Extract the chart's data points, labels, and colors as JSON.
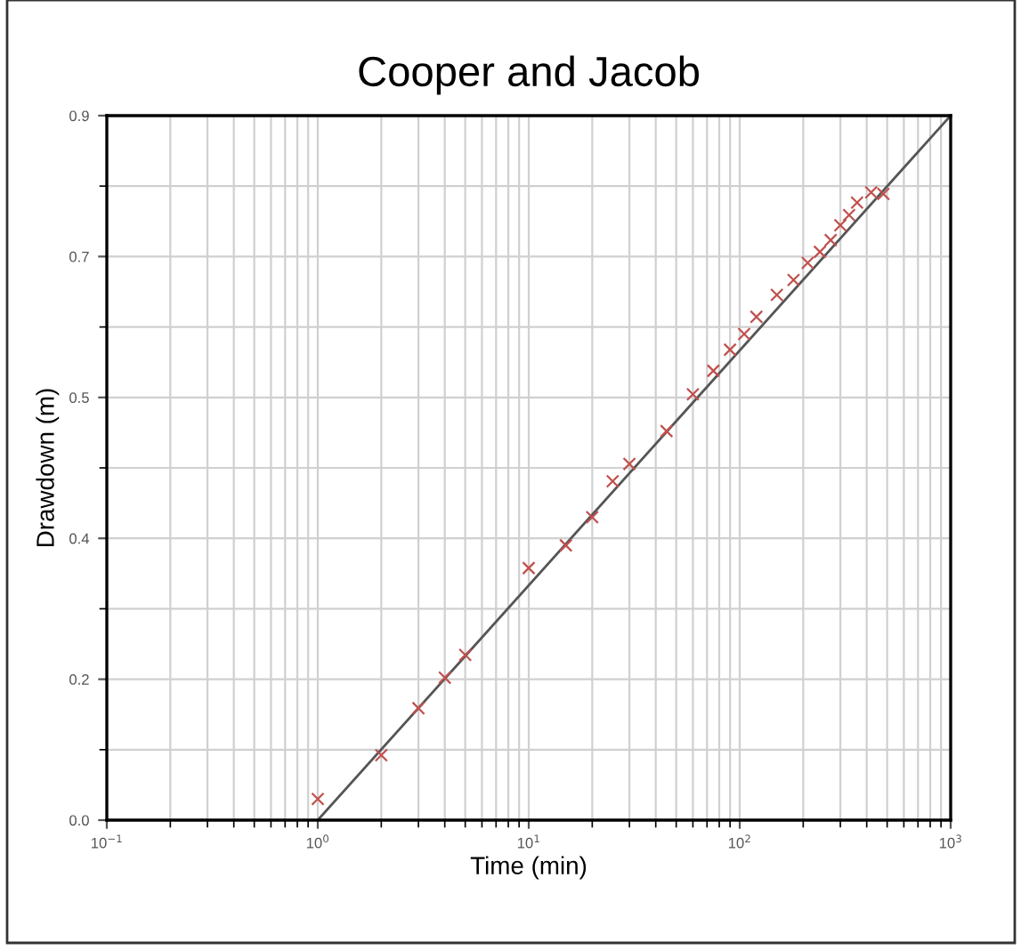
{
  "chart_data": {
    "type": "scatter",
    "title": "Cooper and Jacob",
    "xlabel": "Time (min)",
    "ylabel": "Drawdown (m)",
    "log": "x",
    "grid": true,
    "xlim": [
      0.1,
      1000
    ],
    "xticks": [
      {
        "value": 0.1,
        "label": "10$^{−1}$"
      },
      {
        "value": 1,
        "label": "10$^{0}$"
      },
      {
        "value": 10,
        "label": "10$^{1}$"
      },
      {
        "value": 100,
        "label": "10$^{2}$"
      },
      {
        "value": 1000,
        "label": "10$^{3}$"
      }
    ],
    "ylim": [
      0,
      0.9
    ],
    "yticks": [
      {
        "value": 0,
        "label": "0.0"
      },
      {
        "value": 0.18,
        "label": "0.2"
      },
      {
        "value": 0.36,
        "label": "0.4"
      },
      {
        "value": 0.54,
        "label": "0.5"
      },
      {
        "value": 0.72,
        "label": "0.7"
      },
      {
        "value": 0.9,
        "label": "0.9"
      }
    ],
    "series": [
      {
        "marker": "cross",
        "color": "#c0504d",
        "x": [
          1,
          2,
          3,
          4,
          5,
          10,
          15,
          20,
          25,
          30,
          45,
          60,
          75,
          90,
          105,
          120,
          150,
          180,
          210,
          240,
          270,
          300,
          330,
          360,
          420,
          480
        ],
        "values": [
          0.027,
          0.083,
          0.143,
          0.182,
          0.211,
          0.322,
          0.351,
          0.387,
          0.433,
          0.455,
          0.497,
          0.544,
          0.574,
          0.601,
          0.621,
          0.643,
          0.671,
          0.69,
          0.712,
          0.726,
          0.741,
          0.76,
          0.773,
          0.789,
          0.802,
          0.8
        ]
      },
      {
        "type": "line",
        "color": "#555555",
        "x": [
          1,
          1000
        ],
        "values": [
          0,
          0.9
        ]
      }
    ]
  }
}
